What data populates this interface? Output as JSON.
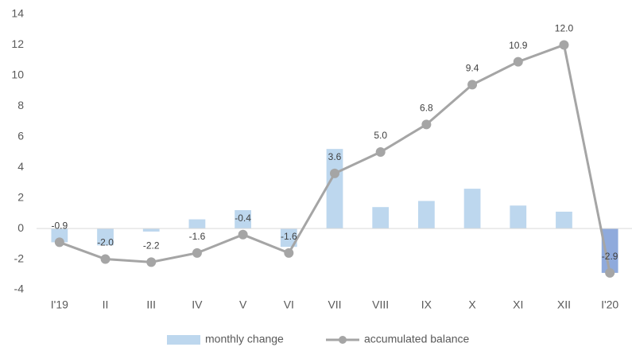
{
  "chart_data": {
    "type": "bar_line",
    "categories": [
      "I'19",
      "II",
      "III",
      "IV",
      "V",
      "VI",
      "VII",
      "VIII",
      "IX",
      "X",
      "XI",
      "XII",
      "I'20"
    ],
    "series": [
      {
        "name": "monthly change",
        "type": "bar",
        "color": "#bdd7ee",
        "colors": [
          "#bdd7ee",
          "#bdd7ee",
          "#bdd7ee",
          "#bdd7ee",
          "#bdd7ee",
          "#bdd7ee",
          "#bdd7ee",
          "#bdd7ee",
          "#bdd7ee",
          "#bdd7ee",
          "#bdd7ee",
          "#bdd7ee",
          "#8faadc"
        ],
        "values": [
          -0.9,
          -1.1,
          -0.2,
          0.6,
          1.2,
          -1.2,
          5.2,
          1.4,
          1.8,
          2.6,
          1.5,
          1.1,
          -2.9
        ]
      },
      {
        "name": "accumulated balance",
        "type": "line",
        "color": "#a5a5a5",
        "values": [
          -0.9,
          -2.0,
          -2.2,
          -1.6,
          -0.4,
          -1.6,
          3.6,
          5.0,
          6.8,
          9.4,
          10.9,
          12.0,
          -2.9
        ],
        "value_labels": [
          "-0.9",
          "-2.0",
          "-2.2",
          "-1.6",
          "-0.4",
          "-1.6",
          "3.6",
          "5.0",
          "6.8",
          "9.4",
          "10.9",
          "12.0",
          "-2.9"
        ]
      }
    ],
    "ylim": [
      -4,
      14
    ],
    "yticks": [
      -4,
      -2,
      0,
      2,
      4,
      6,
      8,
      10,
      12,
      14
    ],
    "grid": false,
    "legend": "bottom"
  }
}
